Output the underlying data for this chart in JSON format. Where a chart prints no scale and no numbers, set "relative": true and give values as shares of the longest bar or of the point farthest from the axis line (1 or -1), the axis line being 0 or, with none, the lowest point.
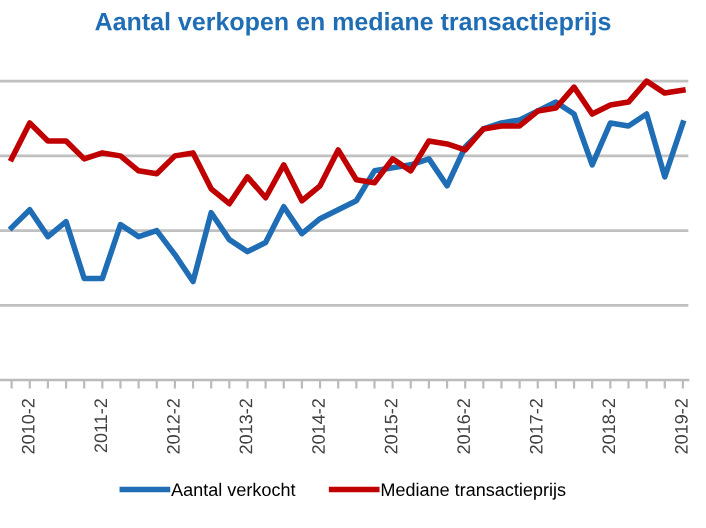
{
  "chart_data": {
    "type": "line",
    "title": "Aantal verkopen en mediane transactieprijs",
    "relative": true,
    "grid": "y",
    "legend": "bottom",
    "marker": "none",
    "line_style": "solid",
    "categories": [
      null,
      "2010-2",
      null,
      null,
      null,
      "2011-2",
      null,
      null,
      null,
      "2012-2",
      null,
      null,
      null,
      "2013-2",
      null,
      null,
      null,
      "2014-2",
      null,
      null,
      null,
      "2015-2",
      null,
      null,
      null,
      "2016-2",
      null,
      null,
      null,
      "2017-2",
      null,
      null,
      null,
      "2018-2",
      null,
      null,
      null,
      "2019-2"
    ],
    "series": [
      {
        "name": "Aantal verkocht",
        "color": "#1f6db5",
        "values": [
          0.51,
          0.57,
          0.48,
          0.53,
          0.34,
          0.34,
          0.52,
          0.48,
          0.5,
          0.42,
          0.33,
          0.56,
          0.47,
          0.43,
          0.46,
          0.58,
          0.49,
          0.54,
          0.57,
          0.6,
          0.7,
          0.71,
          0.72,
          0.74,
          0.65,
          0.78,
          0.84,
          0.86,
          0.87,
          0.9,
          0.93,
          0.89,
          0.72,
          0.86,
          0.85,
          0.89,
          0.68,
          0.86
        ]
      },
      {
        "name": "Mediane transactieprijs",
        "color": "#c00000",
        "values": [
          0.74,
          0.86,
          0.8,
          0.8,
          0.74,
          0.76,
          0.75,
          0.7,
          0.69,
          0.75,
          0.76,
          0.64,
          0.59,
          0.68,
          0.61,
          0.72,
          0.6,
          0.65,
          0.77,
          0.67,
          0.66,
          0.74,
          0.7,
          0.8,
          0.79,
          0.77,
          0.84,
          0.85,
          0.85,
          0.9,
          0.91,
          0.98,
          0.89,
          0.92,
          0.93,
          1.0,
          0.96,
          0.97
        ]
      }
    ]
  }
}
